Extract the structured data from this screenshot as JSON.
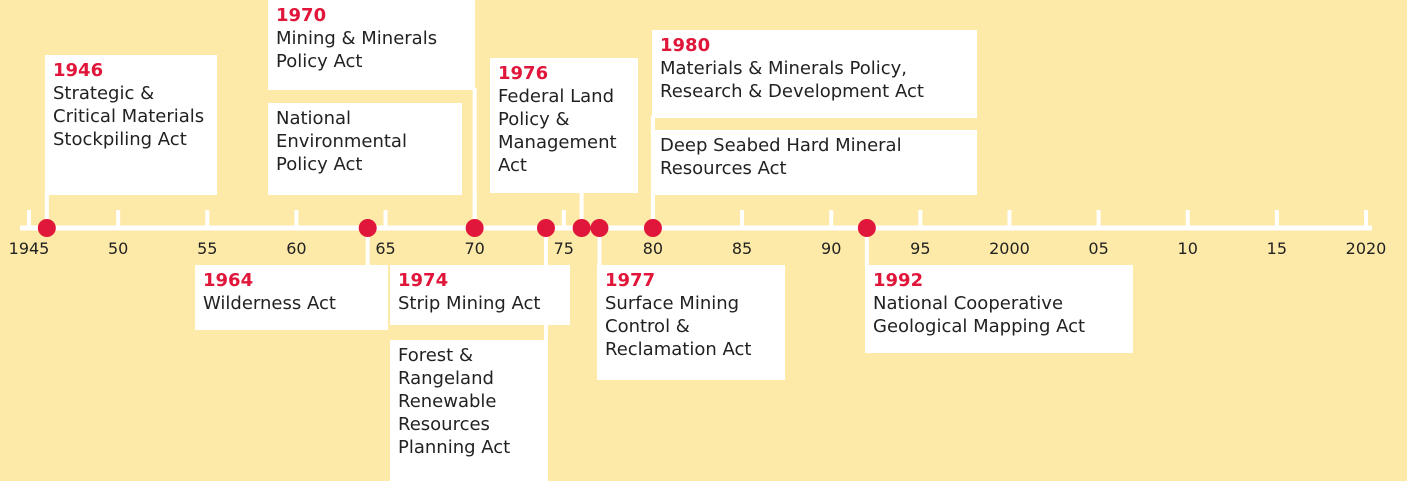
{
  "timeline": {
    "ticks": [
      {
        "value": 1945,
        "label": "1945"
      },
      {
        "value": 1950,
        "label": "50"
      },
      {
        "value": 1955,
        "label": "55"
      },
      {
        "value": 1960,
        "label": "60"
      },
      {
        "value": 1965,
        "label": "65"
      },
      {
        "value": 1970,
        "label": "70"
      },
      {
        "value": 1975,
        "label": "75"
      },
      {
        "value": 1980,
        "label": "80"
      },
      {
        "value": 1985,
        "label": "85"
      },
      {
        "value": 1990,
        "label": "90"
      },
      {
        "value": 1995,
        "label": "95"
      },
      2000,
      {
        "value": 2005,
        "label": "05"
      },
      {
        "value": 2010,
        "label": "10"
      },
      {
        "value": 2015,
        "label": "15"
      },
      2020
    ],
    "events": [
      {
        "year": 1946,
        "acts": [
          "Strategic & Critical Materials Stockpiling Act"
        ]
      },
      {
        "year": 1964,
        "acts": [
          "Wilderness Act"
        ]
      },
      {
        "year": 1970,
        "acts": [
          "Mining & Minerals Policy Act",
          "National Environmental Policy Act"
        ]
      },
      {
        "year": 1974,
        "acts": [
          "Strip Mining Act",
          "Forest & Rangeland Renewable Resources Planning Act"
        ]
      },
      {
        "year": 1976,
        "acts": [
          "Federal Land Policy & Management Act"
        ]
      },
      {
        "year": 1977,
        "acts": [
          "Surface Mining Control & Reclamation Act"
        ]
      },
      {
        "year": 1980,
        "acts": [
          "Materials & Minerals Policy, Research & Development Act",
          "Deep Seabed Hard Mineral Resources Act"
        ]
      },
      {
        "year": 1992,
        "acts": [
          "National Cooperative Geological Mapping Act"
        ]
      }
    ]
  }
}
